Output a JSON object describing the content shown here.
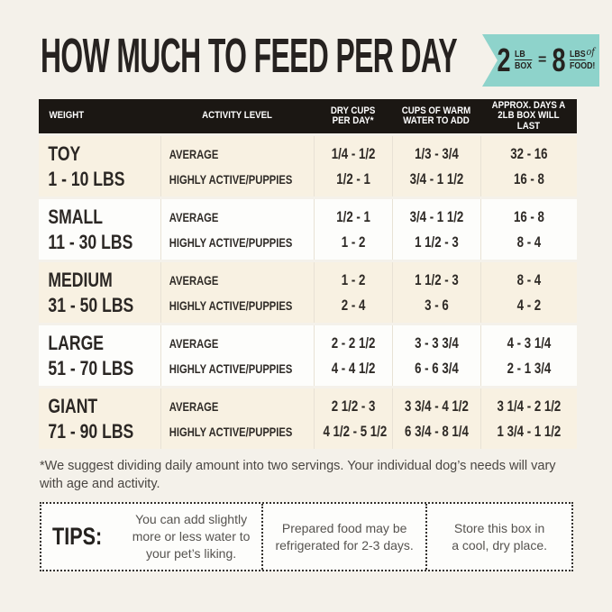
{
  "colors": {
    "page_bg": "#f4f1ea",
    "table_header_bg": "#1b1713",
    "row_cream": "#f8f1e2",
    "row_white": "#fdfdfb",
    "badge_teal": "#8ed3cb",
    "text_dark": "#2b2724"
  },
  "header": {
    "title": "HOW MUCH TO FEED PER DAY",
    "badge": {
      "left_number": "2",
      "left_unit_top": "LB",
      "left_unit_bottom": "BOX",
      "equals": "=",
      "right_number": "8",
      "right_unit_top": "LBS",
      "right_unit_script": "of",
      "right_unit_bottom": "FOOD!"
    }
  },
  "table": {
    "columns": {
      "weight": "WEIGHT",
      "activity": "ACTIVITY LEVEL",
      "dry_cups": "DRY CUPS\nPER DAY*",
      "water": "CUPS OF WARM\nWATER TO ADD",
      "days": "APPROX. DAYS A\n2LB BOX WILL LAST"
    },
    "rows": [
      {
        "name": "TOY",
        "range": "1 - 10 LBS",
        "activities": [
          {
            "label": "AVERAGE",
            "dry_cups": "1/4 - 1/2",
            "water": "1/3 - 3/4",
            "days": "32 - 16"
          },
          {
            "label": "HIGHLY ACTIVE/PUPPIES",
            "dry_cups": "1/2 - 1",
            "water": "3/4 - 1 1/2",
            "days": "16 - 8"
          }
        ]
      },
      {
        "name": "SMALL",
        "range": "11 - 30 LBS",
        "activities": [
          {
            "label": "AVERAGE",
            "dry_cups": "1/2 - 1",
            "water": "3/4 - 1 1/2",
            "days": "16 - 8"
          },
          {
            "label": "HIGHLY ACTIVE/PUPPIES",
            "dry_cups": "1 - 2",
            "water": "1 1/2 - 3",
            "days": "8 - 4"
          }
        ]
      },
      {
        "name": "MEDIUM",
        "range": "31 - 50 LBS",
        "activities": [
          {
            "label": "AVERAGE",
            "dry_cups": "1 - 2",
            "water": "1 1/2 - 3",
            "days": "8 - 4"
          },
          {
            "label": "HIGHLY ACTIVE/PUPPIES",
            "dry_cups": "2 - 4",
            "water": "3 - 6",
            "days": "4 - 2"
          }
        ]
      },
      {
        "name": "LARGE",
        "range": "51 - 70 LBS",
        "activities": [
          {
            "label": "AVERAGE",
            "dry_cups": "2 - 2 1/2",
            "water": "3 - 3 3/4",
            "days": "4 - 3 1/4"
          },
          {
            "label": "HIGHLY ACTIVE/PUPPIES",
            "dry_cups": "4 - 4 1/2",
            "water": "6 - 6 3/4",
            "days": "2 - 1 3/4"
          }
        ]
      },
      {
        "name": "GIANT",
        "range": "71 - 90 LBS",
        "activities": [
          {
            "label": "AVERAGE",
            "dry_cups": "2 1/2 - 3",
            "water": "3 3/4 - 4 1/2",
            "days": "3 1/4 - 2 1/2"
          },
          {
            "label": "HIGHLY ACTIVE/PUPPIES",
            "dry_cups": "4 1/2 - 5 1/2",
            "water": "6 3/4 - 8 1/4",
            "days": "1 3/4 - 1 1/2"
          }
        ]
      }
    ]
  },
  "footnote": "*We suggest dividing daily amount into two servings. Your individual dog’s needs will vary\nwith age and activity.",
  "tips": {
    "label": "TIPS:",
    "items": [
      "You can add slightly\nmore or less water to\nyour pet’s liking.",
      "Prepared food may be\nrefrigerated for 2-3 days.",
      "Store this box in\na cool, dry place."
    ]
  }
}
